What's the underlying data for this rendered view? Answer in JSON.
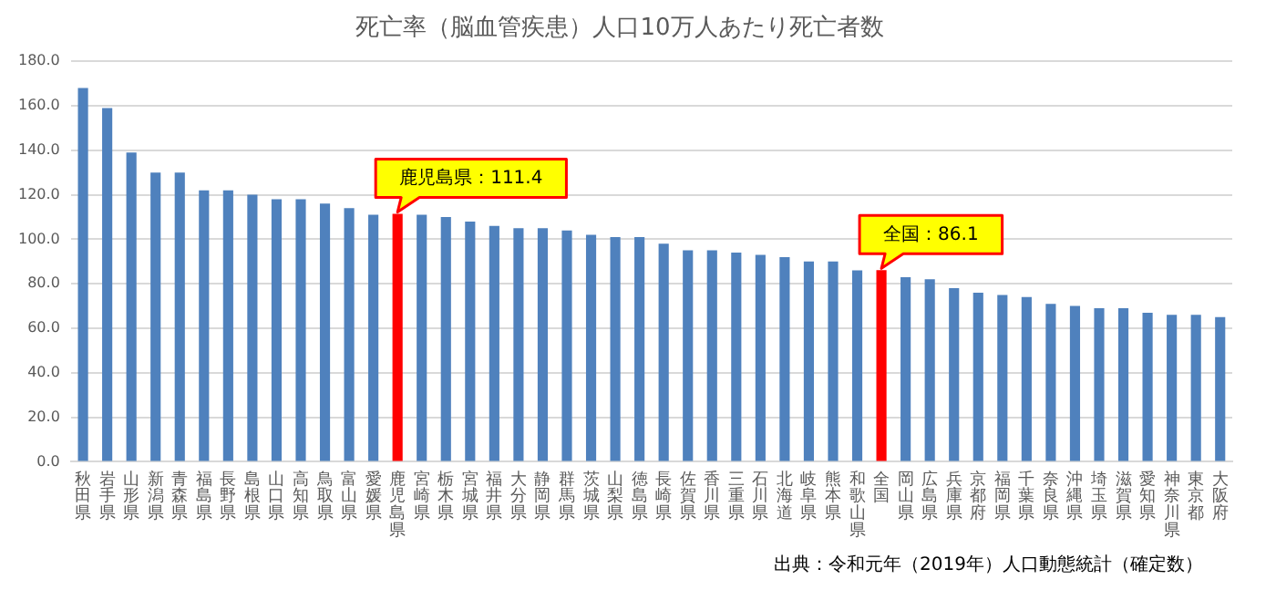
{
  "chart_data": {
    "type": "bar",
    "title": "死亡率（脳血管疾患）人口10万人あたり死亡者数",
    "categories": [
      "秋田県",
      "岩手県",
      "山形県",
      "新潟県",
      "青森県",
      "福島県",
      "長野県",
      "島根県",
      "山口県",
      "高知県",
      "鳥取県",
      "富山県",
      "愛媛県",
      "鹿児島県",
      "宮崎県",
      "栃木県",
      "宮城県",
      "福井県",
      "大分県",
      "静岡県",
      "群馬県",
      "茨城県",
      "山梨県",
      "徳島県",
      "長崎県",
      "佐賀県",
      "香川県",
      "三重県",
      "石川県",
      "北海道",
      "岐阜県",
      "熊本県",
      "和歌山県",
      "全国",
      "岡山県",
      "広島県",
      "兵庫県",
      "京都府",
      "福岡県",
      "千葉県",
      "奈良県",
      "沖縄県",
      "埼玉県",
      "滋賀県",
      "愛知県",
      "神奈川県",
      "東京都",
      "大阪府"
    ],
    "values": [
      168,
      159,
      139,
      130,
      130,
      122,
      122,
      120,
      118,
      118,
      116,
      114,
      111,
      111.4,
      111,
      110,
      108,
      106,
      105,
      105,
      104,
      102,
      101,
      101,
      98,
      95,
      95,
      94,
      93,
      92,
      90,
      90,
      86,
      86.1,
      83,
      82,
      78,
      76,
      75,
      74,
      71,
      70,
      69,
      69,
      67,
      66,
      66,
      65
    ],
    "colors": [
      "#4f81bd",
      "#4f81bd",
      "#4f81bd",
      "#4f81bd",
      "#4f81bd",
      "#4f81bd",
      "#4f81bd",
      "#4f81bd",
      "#4f81bd",
      "#4f81bd",
      "#4f81bd",
      "#4f81bd",
      "#4f81bd",
      "#ff0000",
      "#4f81bd",
      "#4f81bd",
      "#4f81bd",
      "#4f81bd",
      "#4f81bd",
      "#4f81bd",
      "#4f81bd",
      "#4f81bd",
      "#4f81bd",
      "#4f81bd",
      "#4f81bd",
      "#4f81bd",
      "#4f81bd",
      "#4f81bd",
      "#4f81bd",
      "#4f81bd",
      "#4f81bd",
      "#4f81bd",
      "#4f81bd",
      "#ff0000",
      "#4f81bd",
      "#4f81bd",
      "#4f81bd",
      "#4f81bd",
      "#4f81bd",
      "#4f81bd",
      "#4f81bd",
      "#4f81bd",
      "#4f81bd",
      "#4f81bd",
      "#4f81bd",
      "#4f81bd",
      "#4f81bd",
      "#4f81bd"
    ],
    "ylim": [
      0,
      180
    ],
    "yticks": [
      {
        "value": 0,
        "label": "0.0"
      },
      {
        "value": 20,
        "label": "20.0"
      },
      {
        "value": 40,
        "label": "40.0"
      },
      {
        "value": 60,
        "label": "60.0"
      },
      {
        "value": 80,
        "label": "80.0"
      },
      {
        "value": 100,
        "label": "100.0"
      },
      {
        "value": 120,
        "label": "120.0"
      },
      {
        "value": 140,
        "label": "140.0"
      },
      {
        "value": 160,
        "label": "160.0"
      },
      {
        "value": 180,
        "label": "180.0"
      }
    ],
    "grid": "y",
    "legend": false,
    "annotations": [
      {
        "text": "鹿児島県：111.4",
        "x": "鹿児島県",
        "y": 111.4
      },
      {
        "text": "全国：86.1",
        "x": "全国",
        "y": 86.1
      },
      "出典：令和元年（2019年）人口動態統計（確定数）"
    ]
  }
}
